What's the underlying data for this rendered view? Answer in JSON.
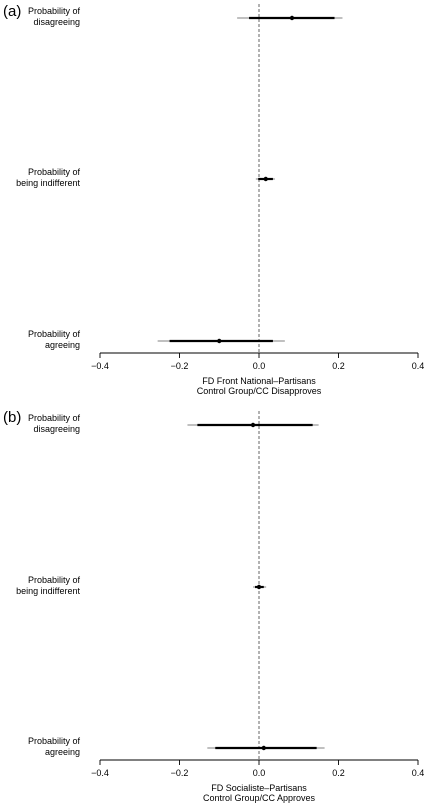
{
  "chart_data": [
    {
      "type": "forest",
      "panel_label": "(a)",
      "title": "",
      "xlabel_lines": [
        "FD Front National–Partisans",
        "Control Group/CC Disapproves"
      ],
      "xlim": [
        -0.4,
        0.4
      ],
      "xticks": [
        -0.4,
        -0.2,
        0,
        0.2,
        0.4
      ],
      "xtick_labels": [
        "−0.4",
        "−0.2",
        "0.0",
        "0.2",
        "0.4"
      ],
      "reference_line": 0,
      "rows": [
        {
          "label_lines": [
            "Probability of",
            "disagreeing"
          ],
          "estimate": 0.083,
          "ci_inner": [
            -0.025,
            0.19
          ],
          "ci_outer": [
            -0.055,
            0.21
          ]
        },
        {
          "label_lines": [
            "Probability of",
            "being indifferent"
          ],
          "estimate": 0.017,
          "ci_inner": [
            -0.002,
            0.035
          ],
          "ci_outer": [
            -0.008,
            0.04
          ]
        },
        {
          "label_lines": [
            "Probability of",
            "agreeing"
          ],
          "estimate": -0.1,
          "ci_inner": [
            -0.225,
            0.035
          ],
          "ci_outer": [
            -0.255,
            0.065
          ]
        }
      ]
    },
    {
      "type": "forest",
      "panel_label": "(b)",
      "title": "",
      "xlabel_lines": [
        "FD Socialiste–Partisans",
        "Control Group/CC Approves"
      ],
      "xlim": [
        -0.4,
        0.4
      ],
      "xticks": [
        -0.4,
        -0.2,
        0,
        0.2,
        0.4
      ],
      "xtick_labels": [
        "−0.4",
        "−0.2",
        "0.0",
        "0.2",
        "0.4"
      ],
      "reference_line": 0,
      "rows": [
        {
          "label_lines": [
            "Probability of",
            "disagreeing"
          ],
          "estimate": -0.015,
          "ci_inner": [
            -0.155,
            0.135
          ],
          "ci_outer": [
            -0.18,
            0.15
          ]
        },
        {
          "label_lines": [
            "Probability of",
            "being indifferent"
          ],
          "estimate": 0.0,
          "ci_inner": [
            -0.01,
            0.012
          ],
          "ci_outer": [
            -0.015,
            0.018
          ]
        },
        {
          "label_lines": [
            "Probability of",
            "agreeing"
          ],
          "estimate": 0.012,
          "ci_inner": [
            -0.11,
            0.145
          ],
          "ci_outer": [
            -0.13,
            0.165
          ]
        }
      ]
    }
  ],
  "colors": {
    "inner_ci": "#000000",
    "outer_ci": "#9a9a9a",
    "point": "#000000",
    "axis": "#000000",
    "reference": "#555555"
  }
}
